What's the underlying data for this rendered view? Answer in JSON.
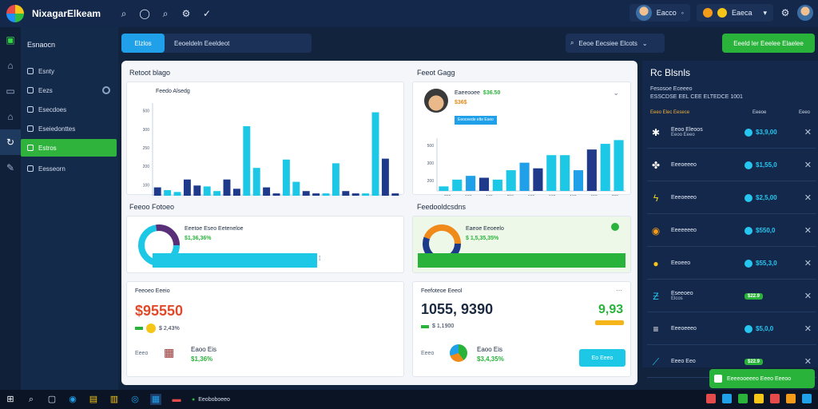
{
  "app": {
    "title": "NixagarElkeam"
  },
  "topbar": {
    "icons": [
      "search-icon",
      "chat-icon",
      "search-icon",
      "settings-icon",
      "check-icon"
    ],
    "user_label": "Eacco",
    "coins_label": "Eaeca"
  },
  "sidebar": {
    "header": "Esnaocn",
    "items": [
      {
        "label": "Esnty",
        "icon": "box-icon",
        "active": false
      },
      {
        "label": "Eezs",
        "icon": "box-icon",
        "active": false
      },
      {
        "label": "Esecdoes",
        "icon": "box-icon",
        "active": false
      },
      {
        "label": "Eseiedonttes",
        "icon": "box-icon",
        "active": false
      },
      {
        "label": "Estros",
        "icon": "box-icon",
        "active": true
      },
      {
        "label": "Eesseorn",
        "icon": "box-icon",
        "active": false
      }
    ]
  },
  "header": {
    "tab_active": "Elzlos",
    "tab_other": "Eeoeldeln Eeeldeot",
    "search_text": "Eeoe Eecsiee Elcots",
    "action_button": "Eeeld ler Eeelee   Elaelee"
  },
  "panel_left": {
    "chart_title": "Retoot blago",
    "chart_inner_title": "Feedo Alsedg",
    "chart_data": {
      "type": "bar",
      "ylabels": [
        "500",
        "300",
        "250",
        "200",
        "100"
      ],
      "xlabels": [
        "100",
        "100",
        "100",
        "100",
        "100",
        "100",
        "100",
        "150",
        "100"
      ],
      "values": [
        18,
        12,
        8,
        35,
        22,
        20,
        10,
        35,
        15,
        150,
        60,
        18,
        5,
        78,
        30,
        10,
        5,
        5,
        70,
        10,
        5,
        5,
        180,
        80,
        5
      ],
      "ylim": [
        0,
        200
      ]
    },
    "section2_title": "Feeoo Fotoeo",
    "donut_label": "Eeetoe Eseo Eeteneloe",
    "donut_value": "$1,36,36%",
    "section3_title": "Feeoeo Eeeio",
    "big_number": "$95550",
    "stat_pre": "$ 2,43%",
    "row_label": "Eeeo",
    "row_title": "Eaoo Eis",
    "row_value": "$1,36%"
  },
  "panel_right": {
    "chart_title": "Feeot Gagg",
    "profile_name": "Eaeeooee",
    "profile_value": "$36.50",
    "profile_sub": "$36$",
    "profile_button": "Eeoceede elte Eseo",
    "chart_data": {
      "type": "bar",
      "ylabels": [
        "500",
        "300",
        "200"
      ],
      "xlabels": [
        "200",
        "100",
        "100",
        "250",
        "100",
        "100",
        "100",
        "150",
        "200"
      ],
      "values": [
        12,
        30,
        40,
        35,
        30,
        55,
        75,
        60,
        95,
        95,
        55,
        110,
        125,
        135
      ],
      "ylim": [
        0,
        140
      ]
    },
    "section2_title": "Feedooldcsdns",
    "donut_label": "Eaeoe Eeoeelo",
    "donut_value": "$ 1,5,35,35%",
    "section3_title": "Feefoteoe Eeeol",
    "big_number": "1055, 9390",
    "big_right": "9,93",
    "stat_pre": "$ 1,1900",
    "row_label": "Eeeo",
    "row_title": "Eaoo Eis",
    "row_value": "$3,4,35%",
    "button": "Eo Eeeo"
  },
  "right_panel": {
    "title": "Rc Blsnls",
    "sub1": "Fesosoe Eceeeo",
    "sub2": "ESSCDSE EEL CEE ELTEDCE 1001",
    "col1": "Eeeo Elec Eesece",
    "col2": "Eeeoe",
    "col3": "Eeeo",
    "rows": [
      {
        "name": "Eeoo Eleoos",
        "sub": "Eeoo Eeeo",
        "value": "$3,9,00",
        "icon": "gear-icon",
        "badge": ""
      },
      {
        "name": "Eeeoeeeo",
        "sub": "",
        "value": "$1,55,0",
        "icon": "puzzle-icon",
        "badge": ""
      },
      {
        "name": "Eeeoeeeo",
        "sub": "",
        "value": "$2,5,00",
        "icon": "lightning-icon",
        "badge": ""
      },
      {
        "name": "Eeeeeeeo",
        "sub": "",
        "value": "$550,0",
        "icon": "chrome-icon",
        "badge": ""
      },
      {
        "name": "Eeoeeo",
        "sub": "",
        "value": "$55,3,0",
        "icon": "coin-icon",
        "badge": ""
      },
      {
        "name": "Eseeoeo",
        "sub": "Elcos",
        "value": "$22.9",
        "icon": "zigzag-icon",
        "badge": "green"
      },
      {
        "name": "Eeeoeeeo",
        "sub": "",
        "value": "$5,0,0",
        "icon": "menu-icon",
        "badge": ""
      },
      {
        "name": "Eeeo Eeo",
        "sub": "",
        "value": "$22.9",
        "icon": "pen-icon",
        "badge": "green"
      }
    ],
    "toast": "Eeeeooeeeo Eeeo Eeeoo"
  },
  "taskbar": {
    "app_label": "Eeoboboeeo"
  },
  "colors": {
    "accent_green": "#2ab33b",
    "accent_blue": "#1fa0e8",
    "navy": "#1f3a8a",
    "cyan": "#1cc8e6"
  }
}
